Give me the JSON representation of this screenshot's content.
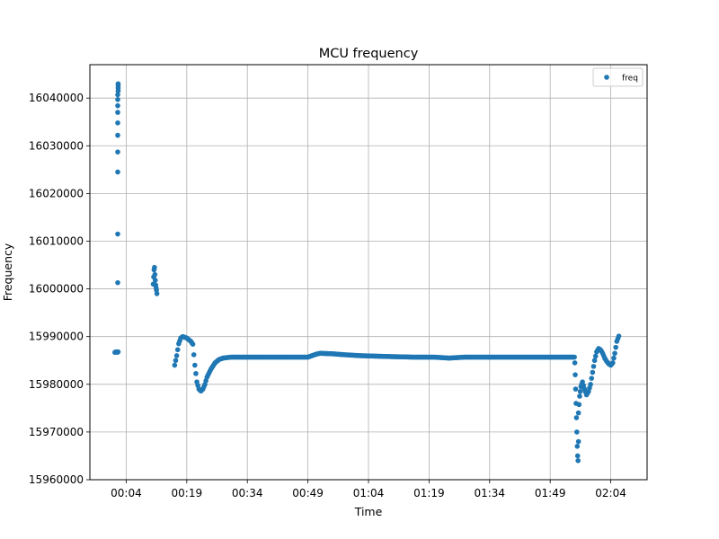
{
  "chart_data": {
    "type": "scatter",
    "title": "MCU frequency",
    "xlabel": "Time",
    "ylabel": "Frequency",
    "x_unit": "minutes",
    "xlim": [
      -5,
      133
    ],
    "ylim": [
      15960000,
      16047000
    ],
    "x_ticks": [
      {
        "value": 4,
        "label": "00:04"
      },
      {
        "value": 19,
        "label": "00:19"
      },
      {
        "value": 34,
        "label": "00:34"
      },
      {
        "value": 49,
        "label": "00:49"
      },
      {
        "value": 64,
        "label": "01:04"
      },
      {
        "value": 79,
        "label": "01:19"
      },
      {
        "value": 94,
        "label": "01:34"
      },
      {
        "value": 109,
        "label": "01:49"
      },
      {
        "value": 124,
        "label": "02:04"
      }
    ],
    "y_ticks": [
      {
        "value": 15960000,
        "label": "15960000"
      },
      {
        "value": 15970000,
        "label": "15970000"
      },
      {
        "value": 15980000,
        "label": "15980000"
      },
      {
        "value": 15990000,
        "label": "15990000"
      },
      {
        "value": 16000000,
        "label": "16000000"
      },
      {
        "value": 16010000,
        "label": "16010000"
      },
      {
        "value": 16020000,
        "label": "16020000"
      },
      {
        "value": 16030000,
        "label": "16030000"
      },
      {
        "value": 16040000,
        "label": "16040000"
      }
    ],
    "grid": true,
    "legend_position": "top-right",
    "series": [
      {
        "name": "freq",
        "color": "#1f77b4",
        "points": [
          [
            1.2,
            15986700
          ],
          [
            1.5,
            15986800
          ],
          [
            1.8,
            15986700
          ],
          [
            2.0,
            15986800
          ],
          [
            1.9,
            16001300
          ],
          [
            1.9,
            16011500
          ],
          [
            1.9,
            16024500
          ],
          [
            1.9,
            16028700
          ],
          [
            1.9,
            16032200
          ],
          [
            1.9,
            16034800
          ],
          [
            1.9,
            16037000
          ],
          [
            1.9,
            16038400
          ],
          [
            1.9,
            16039700
          ],
          [
            1.9,
            16040700
          ],
          [
            2.0,
            16041500
          ],
          [
            2.0,
            16042100
          ],
          [
            2.0,
            16042600
          ],
          [
            2.0,
            16043000
          ],
          [
            10.7,
            16001000
          ],
          [
            10.8,
            16002500
          ],
          [
            10.9,
            16004000
          ],
          [
            11.0,
            16004500
          ],
          [
            11.1,
            16003000
          ],
          [
            11.2,
            16001800
          ],
          [
            11.3,
            16000800
          ],
          [
            11.4,
            16000200
          ],
          [
            11.5,
            15999700
          ],
          [
            11.6,
            15999000
          ],
          [
            16.0,
            15984000
          ],
          [
            16.5,
            15986000
          ],
          [
            17.0,
            15988500
          ],
          [
            17.5,
            15989700
          ],
          [
            18.0,
            15990000
          ],
          [
            19.0,
            15989700
          ],
          [
            20.0,
            15989000
          ],
          [
            20.5,
            15988400
          ],
          [
            21.0,
            15984000
          ],
          [
            21.5,
            15980500
          ],
          [
            22.0,
            15979000
          ],
          [
            22.5,
            15978600
          ],
          [
            23.0,
            15979000
          ],
          [
            23.5,
            15980000
          ],
          [
            24.0,
            15981500
          ],
          [
            25.0,
            15983200
          ],
          [
            26.0,
            15984500
          ],
          [
            27.0,
            15985200
          ],
          [
            28.0,
            15985500
          ],
          [
            30.0,
            15985700
          ],
          [
            35.0,
            15985700
          ],
          [
            40.0,
            15985700
          ],
          [
            45.0,
            15985700
          ],
          [
            49.0,
            15985700
          ],
          [
            50.0,
            15986000
          ],
          [
            51.0,
            15986300
          ],
          [
            52.0,
            15986500
          ],
          [
            55.0,
            15986400
          ],
          [
            58.0,
            15986200
          ],
          [
            62.0,
            15986000
          ],
          [
            66.0,
            15985900
          ],
          [
            70.0,
            15985800
          ],
          [
            75.0,
            15985700
          ],
          [
            80.0,
            15985700
          ],
          [
            84.0,
            15985500
          ],
          [
            88.0,
            15985700
          ],
          [
            92.0,
            15985700
          ],
          [
            96.0,
            15985700
          ],
          [
            100.0,
            15985700
          ],
          [
            104.0,
            15985700
          ],
          [
            108.0,
            15985700
          ],
          [
            112.0,
            15985700
          ],
          [
            114.0,
            15985700
          ],
          [
            115.0,
            15985700
          ],
          [
            115.1,
            15984500
          ],
          [
            115.2,
            15982000
          ],
          [
            115.3,
            15979000
          ],
          [
            115.4,
            15976000
          ],
          [
            115.5,
            15973000
          ],
          [
            115.6,
            15970000
          ],
          [
            115.7,
            15967000
          ],
          [
            115.8,
            15965000
          ],
          [
            115.9,
            15964000
          ],
          [
            116.0,
            15968000
          ],
          [
            116.0,
            15974000
          ],
          [
            116.3,
            15977500
          ],
          [
            116.6,
            15979500
          ],
          [
            117.0,
            15980500
          ],
          [
            117.5,
            15979000
          ],
          [
            118.0,
            15977800
          ],
          [
            118.5,
            15978500
          ],
          [
            119.0,
            15980000
          ],
          [
            119.5,
            15982500
          ],
          [
            120.0,
            15985000
          ],
          [
            120.5,
            15986800
          ],
          [
            121.0,
            15987500
          ],
          [
            121.5,
            15987200
          ],
          [
            122.0,
            15986500
          ],
          [
            122.5,
            15985500
          ],
          [
            123.0,
            15984800
          ],
          [
            123.5,
            15984300
          ],
          [
            124.0,
            15984000
          ],
          [
            124.5,
            15984500
          ],
          [
            125.0,
            15986500
          ],
          [
            125.5,
            15989000
          ],
          [
            126.0,
            15990100
          ]
        ]
      }
    ]
  }
}
